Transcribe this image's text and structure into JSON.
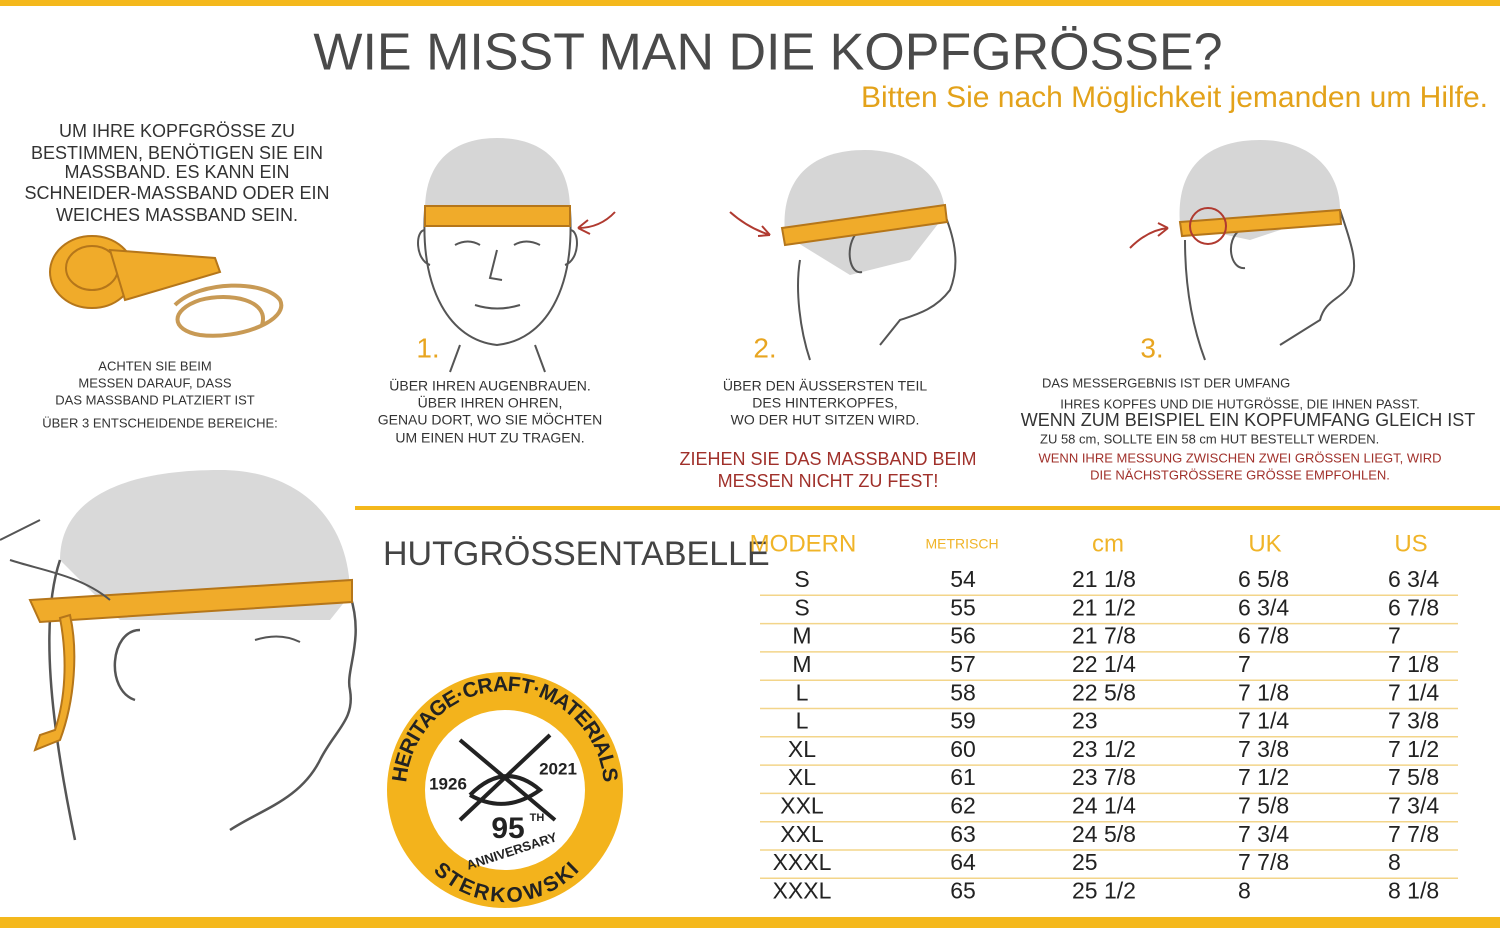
{
  "header": {
    "title": "WIE MISST MAN DIE KOPFGRÖSSE?",
    "subtitle": "Bitten Sie nach Möglichkeit jemanden um Hilfe."
  },
  "intro": {
    "lines": [
      "UM IHRE KOPFGRÖSSE ZU",
      "BESTIMMEN, BENÖTIGEN SIE EIN",
      "MASSBAND. ES KANN EIN",
      "SCHNEIDER-MASSBAND ODER EIN",
      "WEICHES MASSBAND SEIN."
    ]
  },
  "tape_note": {
    "lines": [
      "ACHTEN SIE BEIM",
      "MESSEN DARAUF, DASS",
      "DAS MASSBAND PLATZIERT IST",
      "ÜBER 3 ENTSCHEIDENDE BEREICHE:"
    ]
  },
  "steps": [
    {
      "number": "1.",
      "lines": [
        "ÜBER IHREN AUGENBRAUEN.",
        "ÜBER IHREN OHREN,",
        "GENAU DORT, WO SIE MÖCHTEN",
        "UM EINEN HUT ZU TRAGEN."
      ]
    },
    {
      "number": "2.",
      "lines": [
        "ÜBER DEN ÄUSSERSTEN TEIL",
        "DES HINTERKOPFES,",
        "WO DER HUT SITZEN WIRD."
      ]
    },
    {
      "number": "3.",
      "lines": [
        "DAS MESSERGEBNIS IST DER UMFANG",
        "IHRES KOPFES UND DIE HUTGRÖSSE, DIE IHNEN PASST.",
        "WENN ZUM BEISPIEL EIN KOPFUMFANG GLEICH IST",
        "ZU 58 cm, SOLLTE EIN 58 cm HUT BESTELLT WERDEN."
      ]
    }
  ],
  "warning": {
    "lines": [
      "ZIEHEN SIE DAS MASSBAND BEIM",
      "MESSEN NICHT ZU FEST!"
    ]
  },
  "recommendation": {
    "lines": [
      "WENN IHRE MESSUNG ZWISCHEN ZWEI GRÖSSEN LIEGT, WIRD",
      "DIE NÄCHSTGRÖSSERE GRÖSSE EMPFOHLEN."
    ]
  },
  "table": {
    "title": "HUTGRÖSSENTABELLE",
    "columns": [
      "MODERN",
      "METRISCH",
      "cm",
      "UK",
      "US"
    ],
    "rows": [
      [
        "S",
        "54",
        "21 1/8",
        "6 5/8",
        "6 3/4"
      ],
      [
        "S",
        "55",
        "21 1/2",
        "6 3/4",
        "6 7/8"
      ],
      [
        "M",
        "56",
        "21 7/8",
        "6 7/8",
        "7"
      ],
      [
        "M",
        "57",
        "22 1/4",
        "7",
        "7 1/8"
      ],
      [
        "L",
        "58",
        "22 5/8",
        "7 1/8",
        "7 1/4"
      ],
      [
        "L",
        "59",
        "23",
        "7 1/4",
        "7 3/8"
      ],
      [
        "XL",
        "60",
        "23 1/2",
        "7 3/8",
        "7 1/2"
      ],
      [
        "XL",
        "61",
        "23 7/8",
        "7 1/2",
        "7 5/8"
      ],
      [
        "XXL",
        "62",
        "24 1/4",
        "7 5/8",
        "7 3/4"
      ],
      [
        "XXL",
        "63",
        "24 5/8",
        "7 3/4",
        "7 7/8"
      ],
      [
        "XXXL",
        "64",
        "25",
        "7 7/8",
        "8"
      ],
      [
        "XXXL",
        "65",
        "25 1/2",
        "8",
        "8 1/8"
      ]
    ]
  },
  "badge": {
    "top_text": "HERITAGE·CRAFT·MATERIALS",
    "start_year": "1926",
    "end_year": "2021",
    "anniversary_number": "95",
    "anniversary_suffix": "TH",
    "anniversary_label": "ANNIVERSARY",
    "bottom_text": "STERKOWSKI"
  }
}
